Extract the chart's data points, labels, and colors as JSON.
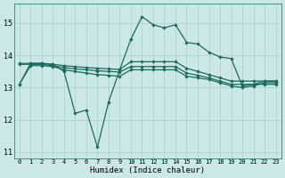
{
  "xlabel": "Humidex (Indice chaleur)",
  "background_color": "#cce8e6",
  "grid_color": "#aed4d0",
  "line_color": "#1a6b5e",
  "xlim": [
    -0.5,
    23.5
  ],
  "ylim": [
    10.8,
    15.6
  ],
  "yticks": [
    11,
    12,
    13,
    14,
    15
  ],
  "xticks": [
    0,
    1,
    2,
    3,
    4,
    5,
    6,
    7,
    8,
    9,
    10,
    11,
    12,
    13,
    14,
    15,
    16,
    17,
    18,
    19,
    20,
    21,
    22,
    23
  ],
  "x": [
    0,
    1,
    2,
    3,
    4,
    5,
    6,
    7,
    8,
    9,
    10,
    11,
    12,
    13,
    14,
    15,
    16,
    17,
    18,
    19,
    20,
    21,
    22,
    23
  ],
  "line_spiky": [
    13.1,
    13.75,
    13.75,
    13.72,
    13.5,
    12.2,
    12.3,
    11.15,
    12.55,
    13.55,
    14.5,
    15.2,
    14.95,
    14.85,
    14.95,
    14.4,
    14.35,
    14.1,
    13.95,
    13.9,
    13.05,
    13.1,
    13.2,
    13.2
  ],
  "line_upper": [
    13.75,
    13.75,
    13.75,
    13.72,
    13.68,
    13.65,
    13.62,
    13.6,
    13.58,
    13.56,
    13.8,
    13.8,
    13.8,
    13.8,
    13.8,
    13.6,
    13.5,
    13.4,
    13.3,
    13.2,
    13.2,
    13.2,
    13.2,
    13.2
  ],
  "line_mid": [
    13.72,
    13.72,
    13.72,
    13.68,
    13.62,
    13.58,
    13.55,
    13.52,
    13.5,
    13.48,
    13.65,
    13.65,
    13.65,
    13.65,
    13.65,
    13.45,
    13.38,
    13.3,
    13.2,
    13.1,
    13.1,
    13.1,
    13.1,
    13.1
  ],
  "line_lower": [
    13.1,
    13.68,
    13.68,
    13.65,
    13.55,
    13.5,
    13.45,
    13.4,
    13.38,
    13.35,
    13.55,
    13.55,
    13.55,
    13.55,
    13.55,
    13.35,
    13.3,
    13.25,
    13.15,
    13.05,
    13.0,
    13.05,
    13.15,
    13.15
  ]
}
